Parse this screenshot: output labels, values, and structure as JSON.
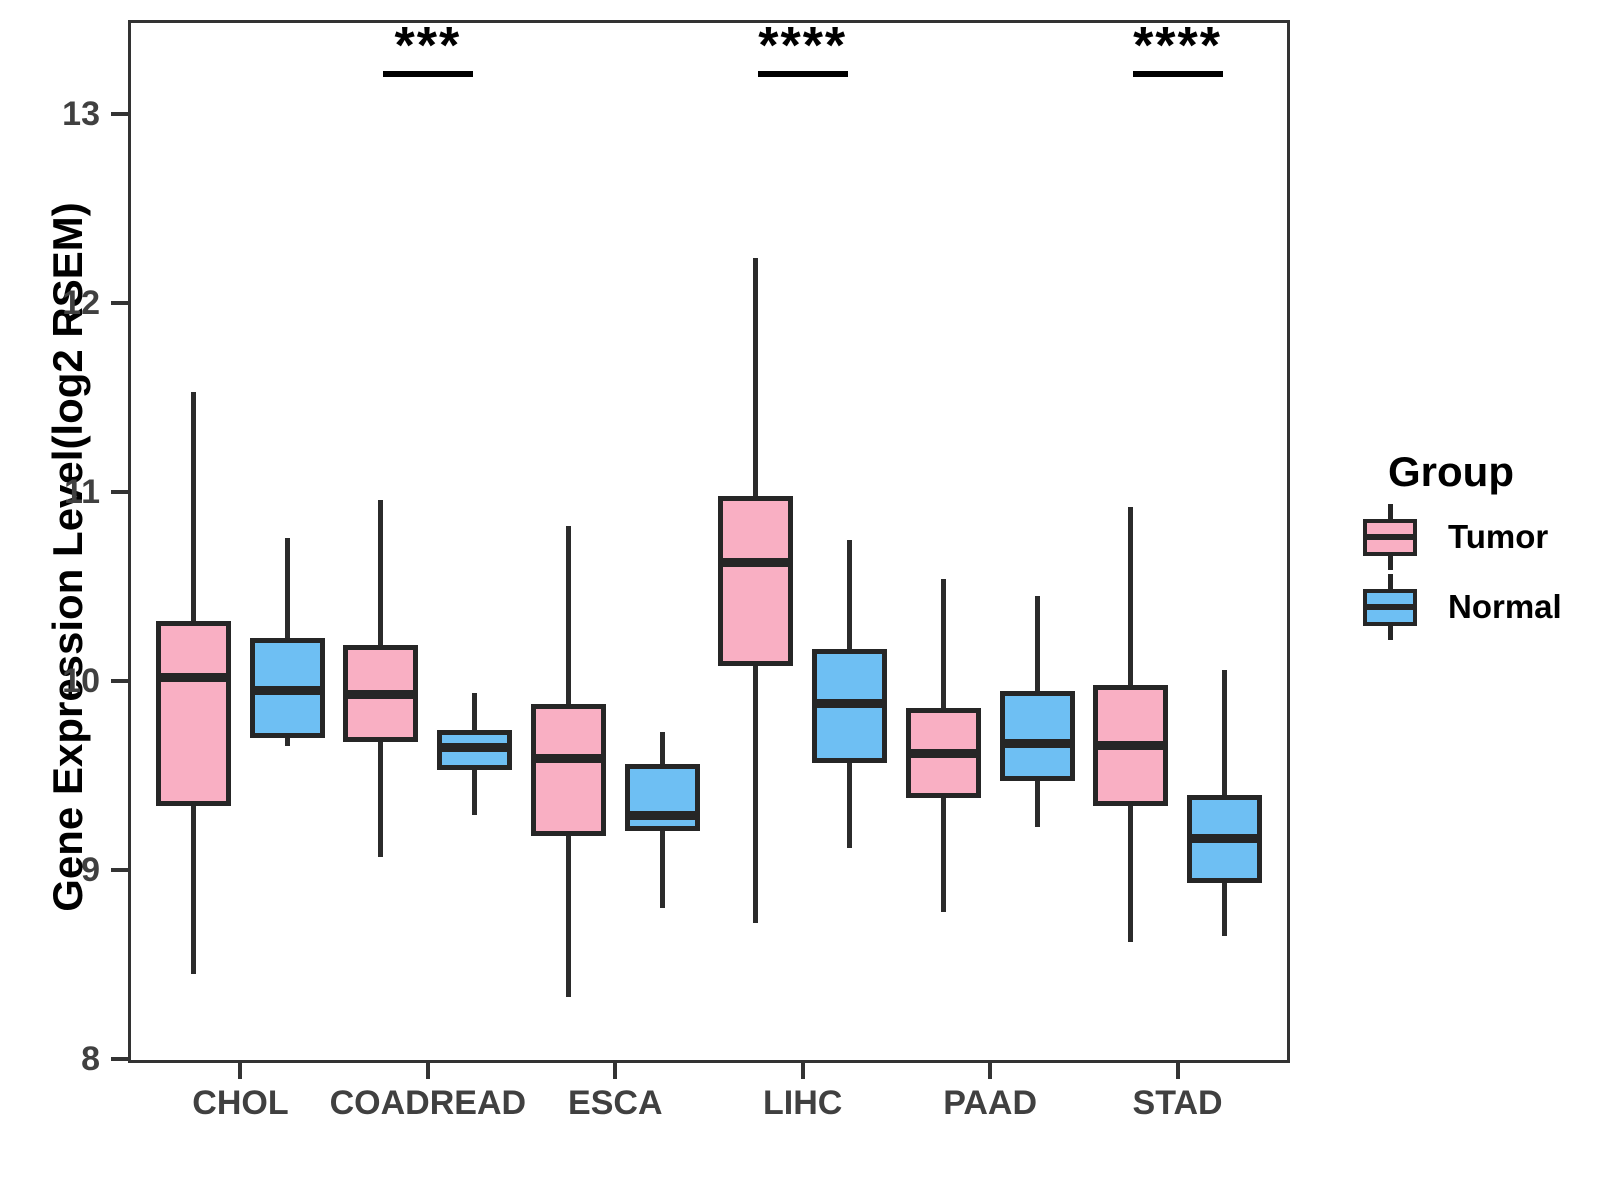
{
  "figure": {
    "ylabel": "Gene Expression Level(log2 RSEM)"
  },
  "legend": {
    "title": "Group",
    "items": [
      {
        "label": "Tumor",
        "color": "#F9AFC3"
      },
      {
        "label": "Normal",
        "color": "#6EBFF3"
      }
    ]
  },
  "chart_data": {
    "type": "grouped_boxplot",
    "title": "",
    "xlabel": "",
    "ylabel": "Gene Expression Level(log2 RSEM)",
    "categories": [
      "CHOL",
      "COADREAD",
      "ESCA",
      "LIHC",
      "PAAD",
      "STAD"
    ],
    "y_ticks": [
      8,
      9,
      10,
      11,
      12,
      13
    ],
    "ylim": [
      7.98,
      13.5
    ],
    "grid": false,
    "legend_position": "right",
    "legend_title": "Group",
    "box_colors": {
      "border": "#262626",
      "panel_border": "#333333"
    },
    "groups": [
      {
        "name": "Tumor",
        "color": "#F9AFC3",
        "boxes": [
          {
            "category": "CHOL",
            "whisker_low": 8.45,
            "q1": 9.34,
            "median": 10.02,
            "q3": 10.32,
            "whisker_high": 11.53
          },
          {
            "category": "COADREAD",
            "whisker_low": 9.07,
            "q1": 9.68,
            "median": 9.93,
            "q3": 10.19,
            "whisker_high": 10.96
          },
          {
            "category": "ESCA",
            "whisker_low": 8.33,
            "q1": 9.18,
            "median": 9.59,
            "q3": 9.88,
            "whisker_high": 10.82
          },
          {
            "category": "LIHC",
            "whisker_low": 8.72,
            "q1": 10.08,
            "median": 10.63,
            "q3": 10.98,
            "whisker_high": 12.24
          },
          {
            "category": "PAAD",
            "whisker_low": 8.78,
            "q1": 9.38,
            "median": 9.62,
            "q3": 9.86,
            "whisker_high": 10.54
          },
          {
            "category": "STAD",
            "whisker_low": 8.62,
            "q1": 9.34,
            "median": 9.66,
            "q3": 9.98,
            "whisker_high": 10.92
          }
        ]
      },
      {
        "name": "Normal",
        "color": "#6EBFF3",
        "boxes": [
          {
            "category": "CHOL",
            "whisker_low": 9.66,
            "q1": 9.7,
            "median": 9.95,
            "q3": 10.23,
            "whisker_high": 10.76
          },
          {
            "category": "COADREAD",
            "whisker_low": 9.29,
            "q1": 9.53,
            "median": 9.65,
            "q3": 9.74,
            "whisker_high": 9.94
          },
          {
            "category": "ESCA",
            "whisker_low": 8.8,
            "q1": 9.21,
            "median": 9.29,
            "q3": 9.56,
            "whisker_high": 9.73
          },
          {
            "category": "LIHC",
            "whisker_low": 9.12,
            "q1": 9.57,
            "median": 9.88,
            "q3": 10.17,
            "whisker_high": 10.75
          },
          {
            "category": "PAAD",
            "whisker_low": 9.23,
            "q1": 9.47,
            "median": 9.67,
            "q3": 9.95,
            "whisker_high": 10.45
          },
          {
            "category": "STAD",
            "whisker_low": 8.65,
            "q1": 8.93,
            "median": 9.17,
            "q3": 9.4,
            "whisker_high": 10.06
          }
        ]
      }
    ],
    "significance": [
      {
        "category": "COADREAD",
        "label": "***"
      },
      {
        "category": "LIHC",
        "label": "****"
      },
      {
        "category": "STAD",
        "label": "****"
      }
    ]
  }
}
